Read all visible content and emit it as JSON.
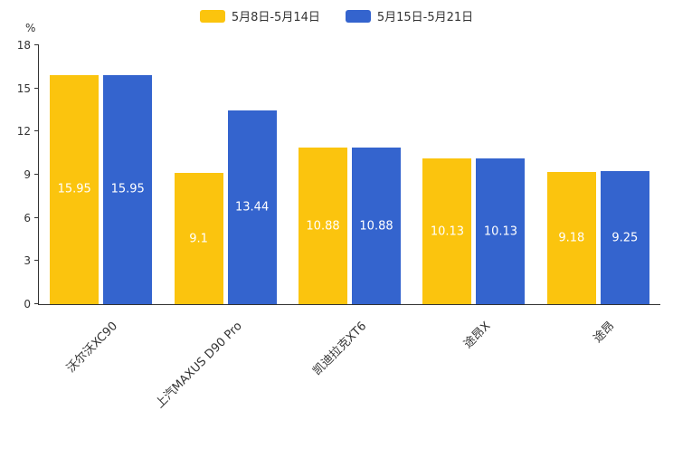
{
  "legend": {
    "items": [
      {
        "label": "5月8日-5月14日"
      },
      {
        "label": "5月15日-5月21日"
      }
    ]
  },
  "chart_data": {
    "type": "bar",
    "title": "",
    "categories": [
      "沃尔沃XC90",
      "上汽MAXUS D90 Pro",
      "凯迪拉克XT6",
      "途昂X",
      "途昂"
    ],
    "series": [
      {
        "name": "5月8日-5月14日",
        "color": "#FBC40E",
        "values": [
          15.95,
          9.1,
          10.88,
          10.13,
          9.18
        ]
      },
      {
        "name": "5月15日-5月21日",
        "color": "#3464CE",
        "values": [
          15.95,
          13.44,
          10.88,
          10.13,
          9.25
        ]
      }
    ],
    "xlabel": "",
    "ylabel": "%",
    "ylim": [
      0,
      18
    ],
    "y_ticks": [
      0,
      3,
      6,
      9,
      12,
      15,
      18
    ],
    "grid": false,
    "legend_position": "top",
    "value_labels": true
  }
}
